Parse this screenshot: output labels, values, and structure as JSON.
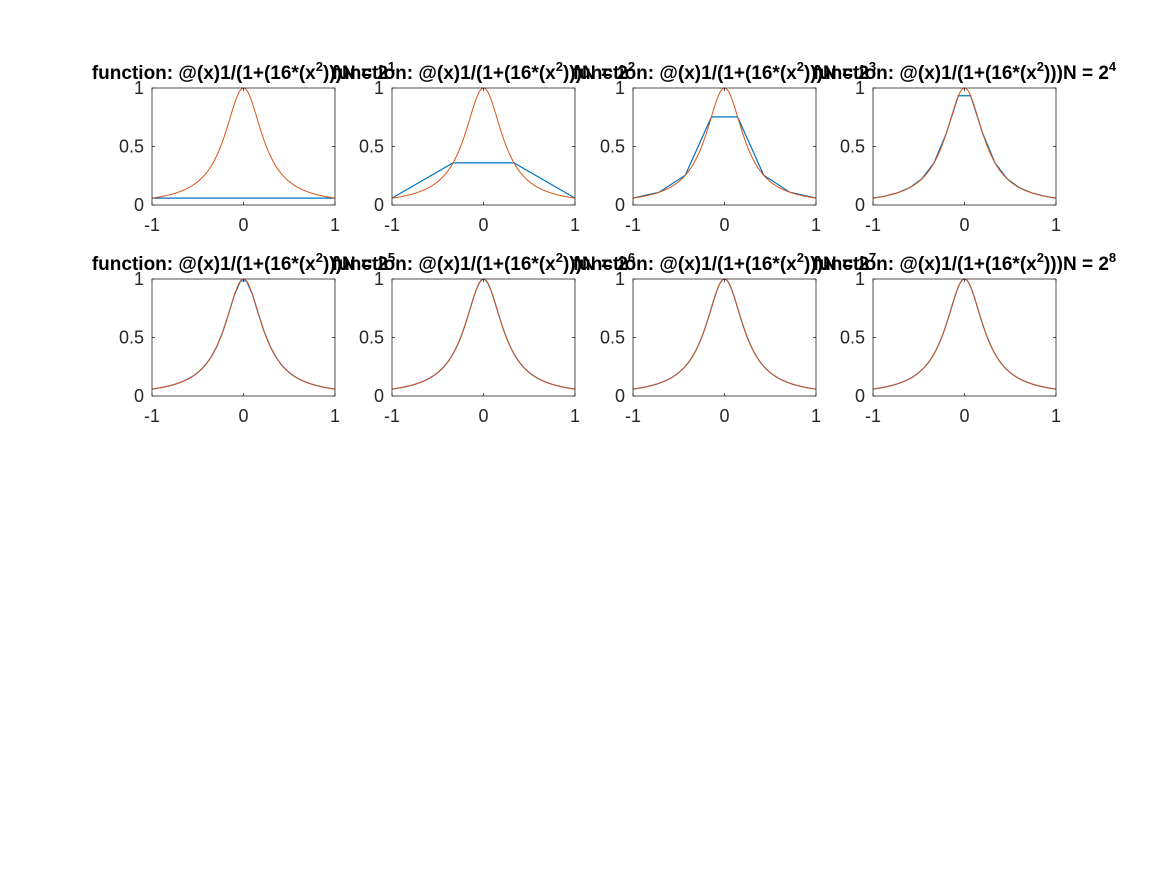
{
  "figure": {
    "background": "#ffffff",
    "axes_color": "#262626",
    "series_colors": {
      "interpolant": "#0072bd",
      "function": "#d95319"
    }
  },
  "chart_data": [
    {
      "type": "line",
      "title": "function: @(x)1/(1+(16*(x^2)))N = 2^1",
      "title_parts": {
        "prefix": "function: @(x)1/(1+(16*(x",
        "exp2": "2",
        "mid": ")))N = 2",
        "exp": "1"
      },
      "xlim": [
        -1,
        1
      ],
      "ylim": [
        0,
        1
      ],
      "xticks": [
        "-1",
        "0",
        "1"
      ],
      "yticks": [
        "0",
        "0.5",
        "1"
      ],
      "grid": false,
      "box": true,
      "series": [
        {
          "role": "interpolant",
          "x": [
            -1,
            1
          ],
          "y": [
            0.0588,
            0.0588
          ]
        },
        {
          "role": "function",
          "expr": "1/(1+16*x^2)"
        }
      ]
    },
    {
      "type": "line",
      "title": "function: @(x)1/(1+(16*(x^2)))N = 2^2",
      "title_parts": {
        "prefix": "function: @(x)1/(1+(16*(x",
        "exp2": "2",
        "mid": ")))N = 2",
        "exp": "2"
      },
      "xlim": [
        -1,
        1
      ],
      "ylim": [
        0,
        1
      ],
      "xticks": [
        "-1",
        "0",
        "1"
      ],
      "yticks": [
        "0",
        "0.5",
        "1"
      ],
      "grid": false,
      "box": true,
      "series": [
        {
          "role": "interpolant",
          "x": [
            -1,
            -0.333,
            0.333,
            1
          ],
          "y": [
            0.0588,
            0.36,
            0.36,
            0.0588
          ]
        },
        {
          "role": "function",
          "expr": "1/(1+16*x^2)"
        }
      ]
    },
    {
      "type": "line",
      "title": "function: @(x)1/(1+(16*(x^2)))N = 2^3",
      "title_parts": {
        "prefix": "function: @(x)1/(1+(16*(x",
        "exp2": "2",
        "mid": ")))N = 2",
        "exp": "3"
      },
      "xlim": [
        -1,
        1
      ],
      "ylim": [
        0,
        1
      ],
      "xticks": [
        "-1",
        "0",
        "1"
      ],
      "yticks": [
        "0",
        "0.5",
        "1"
      ],
      "grid": false,
      "box": true,
      "series": [
        {
          "role": "interpolant",
          "x": [
            -1,
            -0.714,
            -0.429,
            -0.143,
            0.143,
            0.429,
            0.714,
            1
          ],
          "y": [
            0.0588,
            0.109,
            0.254,
            0.753,
            0.753,
            0.254,
            0.109,
            0.0588
          ]
        },
        {
          "role": "function",
          "expr": "1/(1+16*x^2)"
        }
      ]
    },
    {
      "type": "line",
      "title": "function: @(x)1/(1+(16*(x^2)))N = 2^4",
      "title_parts": {
        "prefix": "function: @(x)1/(1+(16*(x",
        "exp2": "2",
        "mid": ")))N = 2",
        "exp": "4"
      },
      "xlim": [
        -1,
        1
      ],
      "ylim": [
        0,
        1
      ],
      "xticks": [
        "-1",
        "0",
        "1"
      ],
      "yticks": [
        "0",
        "0.5",
        "1"
      ],
      "grid": false,
      "box": true,
      "series": [
        {
          "role": "interpolant",
          "x": [
            -1,
            -0.867,
            -0.733,
            -0.6,
            -0.467,
            -0.333,
            -0.2,
            -0.067,
            0.067,
            0.2,
            0.333,
            0.467,
            0.6,
            0.733,
            0.867,
            1
          ],
          "y": [
            0.0588,
            0.0767,
            0.104,
            0.148,
            0.223,
            0.36,
            0.61,
            0.934,
            0.934,
            0.61,
            0.36,
            0.223,
            0.148,
            0.104,
            0.0767,
            0.0588
          ]
        },
        {
          "role": "function",
          "expr": "1/(1+16*x^2)"
        }
      ]
    },
    {
      "type": "line",
      "title": "function: @(x)1/(1+(16*(x^2)))N = 2^5",
      "title_parts": {
        "prefix": "function: @(x)1/(1+(16*(x",
        "exp2": "2",
        "mid": ")))N = 2",
        "exp": "5"
      },
      "xlim": [
        -1,
        1
      ],
      "ylim": [
        0,
        1
      ],
      "xticks": [
        "-1",
        "0",
        "1"
      ],
      "yticks": [
        "0",
        "0.5",
        "1"
      ],
      "grid": false,
      "box": true,
      "series": [
        {
          "role": "interpolant",
          "n": 32,
          "expr": "1/(1+16*x^2)"
        },
        {
          "role": "function",
          "expr": "1/(1+16*x^2)"
        }
      ]
    },
    {
      "type": "line",
      "title": "function: @(x)1/(1+(16*(x^2)))N = 2^6",
      "title_parts": {
        "prefix": "function: @(x)1/(1+(16*(x",
        "exp2": "2",
        "mid": ")))N = 2",
        "exp": "6"
      },
      "xlim": [
        -1,
        1
      ],
      "ylim": [
        0,
        1
      ],
      "xticks": [
        "-1",
        "0",
        "1"
      ],
      "yticks": [
        "0",
        "0.5",
        "1"
      ],
      "grid": false,
      "box": true,
      "series": [
        {
          "role": "interpolant",
          "n": 64,
          "expr": "1/(1+16*x^2)"
        },
        {
          "role": "function",
          "expr": "1/(1+16*x^2)"
        }
      ]
    },
    {
      "type": "line",
      "title": "function: @(x)1/(1+(16*(x^2)))N = 2^7",
      "title_parts": {
        "prefix": "function: @(x)1/(1+(16*(x",
        "exp2": "2",
        "mid": ")))N = 2",
        "exp": "7"
      },
      "xlim": [
        -1,
        1
      ],
      "ylim": [
        0,
        1
      ],
      "xticks": [
        "-1",
        "0",
        "1"
      ],
      "yticks": [
        "0",
        "0.5",
        "1"
      ],
      "grid": false,
      "box": true,
      "series": [
        {
          "role": "interpolant",
          "n": 128,
          "expr": "1/(1+16*x^2)"
        },
        {
          "role": "function",
          "expr": "1/(1+16*x^2)"
        }
      ]
    },
    {
      "type": "line",
      "title": "function: @(x)1/(1+(16*(x^2)))N = 2^8",
      "title_parts": {
        "prefix": "function: @(x)1/(1+(16*(x",
        "exp2": "2",
        "mid": ")))N = 2",
        "exp": "8"
      },
      "xlim": [
        -1,
        1
      ],
      "ylim": [
        0,
        1
      ],
      "xticks": [
        "-1",
        "0",
        "1"
      ],
      "yticks": [
        "0",
        "0.5",
        "1"
      ],
      "grid": false,
      "box": true,
      "series": [
        {
          "role": "interpolant",
          "n": 256,
          "expr": "1/(1+16*x^2)"
        },
        {
          "role": "function",
          "expr": "1/(1+16*x^2)"
        }
      ]
    }
  ]
}
